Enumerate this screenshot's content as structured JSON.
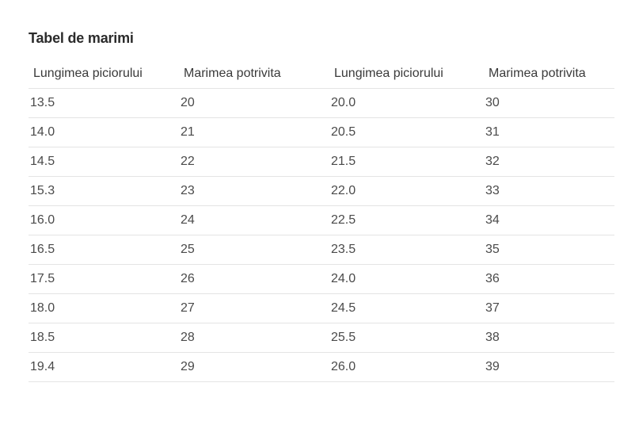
{
  "title": "Tabel de marimi",
  "table": {
    "headers": [
      "Lungimea piciorului",
      "Marimea potrivita",
      "Lungimea piciorului",
      "Marimea potrivita"
    ],
    "rows": [
      [
        "13.5",
        "20",
        "20.0",
        "30"
      ],
      [
        "14.0",
        "21",
        "20.5",
        "31"
      ],
      [
        "14.5",
        "22",
        "21.5",
        "32"
      ],
      [
        "15.3",
        "23",
        "22.0",
        "33"
      ],
      [
        "16.0",
        "24",
        "22.5",
        "34"
      ],
      [
        "16.5",
        "25",
        "23.5",
        "35"
      ],
      [
        "17.5",
        "26",
        "24.0",
        "36"
      ],
      [
        "18.0",
        "27",
        "24.5",
        "37"
      ],
      [
        "18.5",
        "28",
        "25.5",
        "38"
      ],
      [
        "19.4",
        "29",
        "26.0",
        "39"
      ]
    ]
  }
}
